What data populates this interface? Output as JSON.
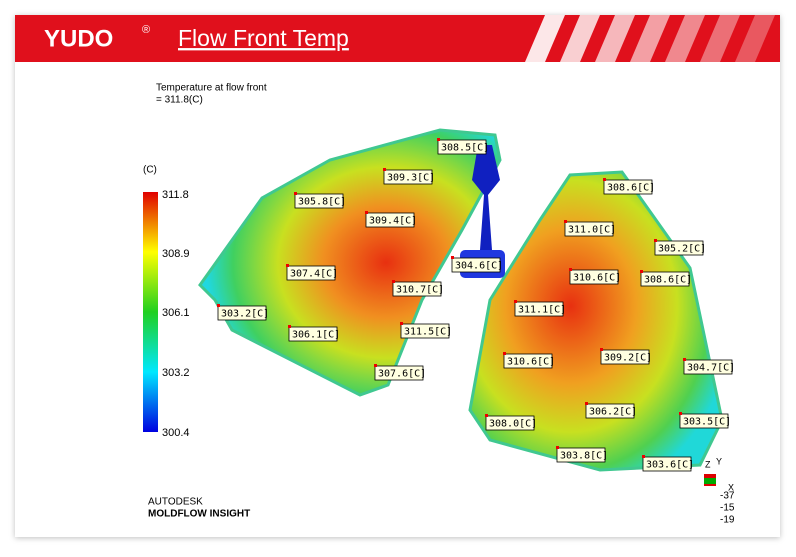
{
  "header": {
    "brand": "YUDO",
    "brand_mark": "®",
    "title": "Flow Front Temp"
  },
  "result": {
    "name": "Temperature at flow front",
    "value": "= 311.8(C)"
  },
  "legend": {
    "unit": "(C)",
    "labels": [
      "311.8",
      "308.9",
      "306.1",
      "303.2",
      "300.4"
    ]
  },
  "probes": [
    "308.5[C]",
    "309.3[C]",
    "305.8[C]",
    "309.4[C]",
    "307.4[C]",
    "310.7[C]",
    "303.2[C]",
    "306.1[C]",
    "311.5[C]",
    "307.6[C]",
    "304.6[C]",
    "308.6[C]",
    "311.0[C]",
    "305.2[C]",
    "310.6[C]",
    "308.6[C]",
    "311.1[C]",
    "310.6[C]",
    "309.2[C]",
    "304.7[C]",
    "308.0[C]",
    "306.2[C]",
    "303.5[C]",
    "303.8[C]",
    "303.6[C]"
  ],
  "footer": {
    "vendor": "AUTODESK",
    "product": "MOLDFLOW INSIGHT"
  },
  "triad": {
    "axes": [
      "Z",
      "Y",
      "X"
    ],
    "coords": [
      "-37",
      "-15",
      "-19"
    ]
  }
}
